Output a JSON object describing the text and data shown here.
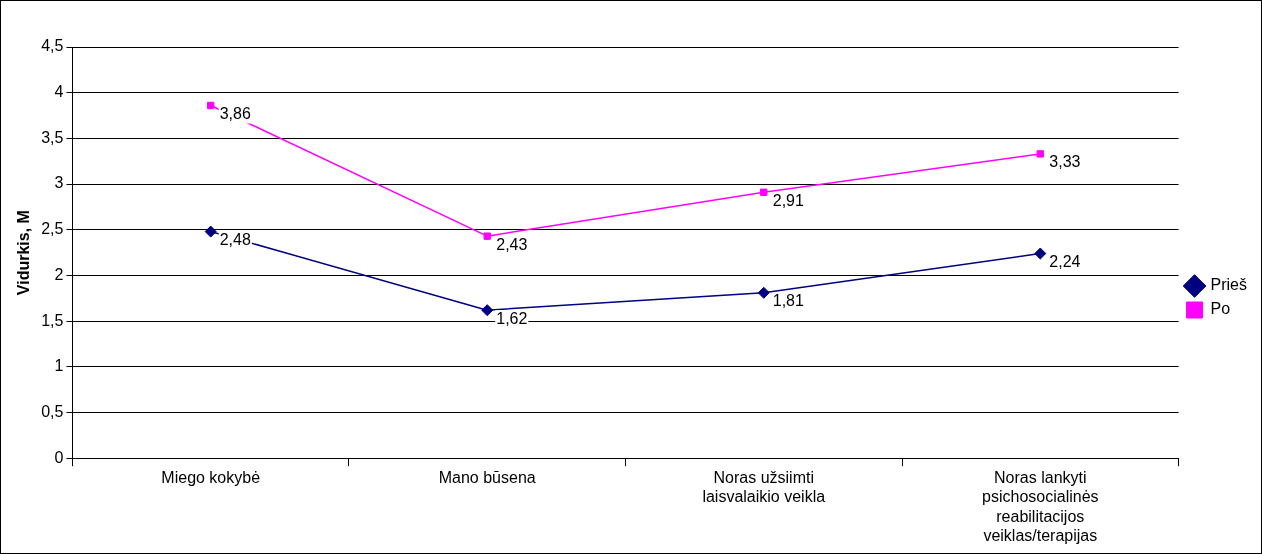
{
  "chart_data": {
    "type": "line",
    "ylabel": "Vidurkis, M",
    "categories": [
      "Miego kokybė",
      "Mano būsena",
      "Noras užsiimti laisvalaikio veikla",
      "Noras lankyti psichosocialinės reabilitacijos veiklas/terapijas"
    ],
    "series": [
      {
        "name": "Prieš",
        "color": "#000080",
        "marker": "diamond",
        "values": [
          2.48,
          1.62,
          1.81,
          2.24
        ],
        "value_labels": [
          "2,48",
          "1,62",
          "1,81",
          "2,24"
        ]
      },
      {
        "name": "Po",
        "color": "#ff00ff",
        "marker": "square",
        "values": [
          3.86,
          2.43,
          2.91,
          3.33
        ],
        "value_labels": [
          "3,86",
          "2,43",
          "2,91",
          "3,33"
        ]
      }
    ],
    "ylim": [
      0,
      4.5
    ],
    "yticks": [
      0,
      {
        "value": 0.5,
        "label": "0,5"
      },
      1,
      {
        "value": 1.5,
        "label": "1,5"
      },
      2,
      {
        "value": 2.5,
        "label": "2,5"
      },
      3,
      {
        "value": 3.5,
        "label": "3,5"
      },
      4,
      {
        "value": 4.5,
        "label": "4,5"
      }
    ],
    "grid": "y",
    "legend": "right",
    "line_style": "solid"
  }
}
